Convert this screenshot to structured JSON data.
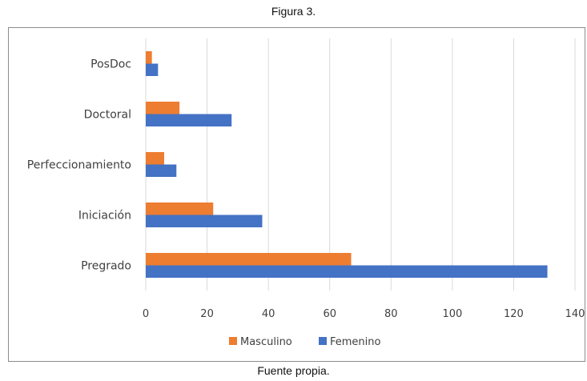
{
  "figure": {
    "title": "Figura 3.",
    "source": "Fuente propia."
  },
  "chart_data": {
    "type": "bar",
    "orientation": "horizontal",
    "categories": [
      "Pregrado",
      "Iniciación",
      "Perfeccionamiento",
      "Doctoral",
      "PosDoc"
    ],
    "series": [
      {
        "name": "Masculino",
        "color": "#ED7D31",
        "values": [
          67,
          22,
          6,
          11,
          2
        ]
      },
      {
        "name": "Femenino",
        "color": "#4472C4",
        "values": [
          131,
          38,
          10,
          28,
          4
        ]
      }
    ],
    "xlim": [
      0,
      140
    ],
    "xticks": [
      0,
      20,
      40,
      60,
      80,
      100,
      120,
      140
    ],
    "grid": true,
    "legend_position": "bottom"
  }
}
